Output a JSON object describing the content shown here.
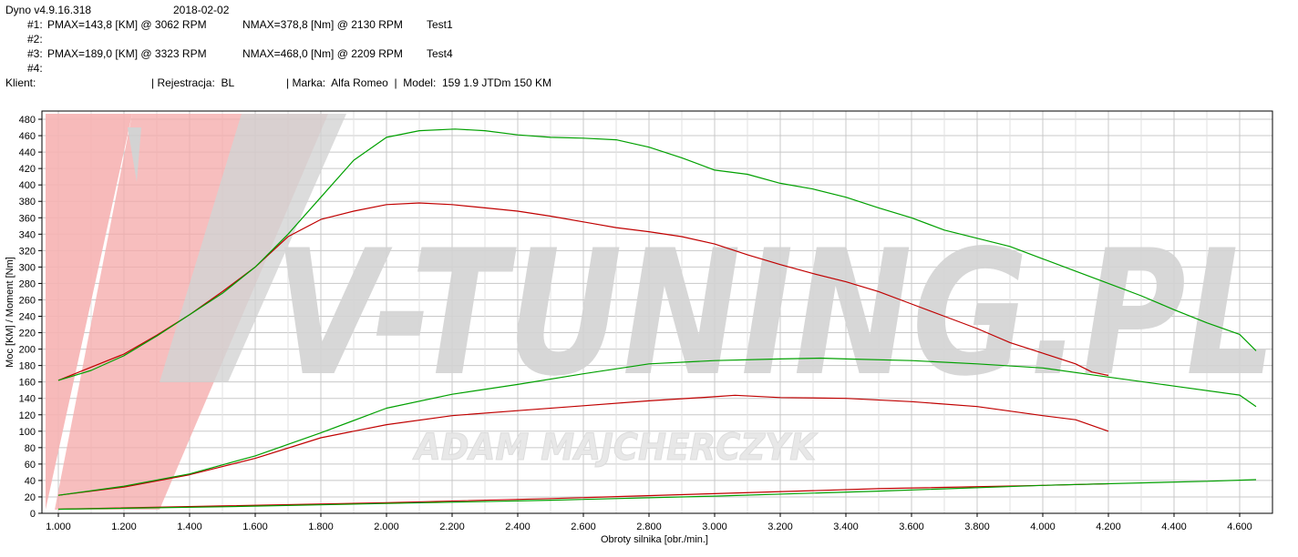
{
  "header": {
    "app_version": "Dyno v4.9.16.318",
    "date": "2018-02-02",
    "runs": [
      {
        "id": "#1:",
        "pmax": "PMAX=143,8 [KM] @ 3062 RPM",
        "nmax": "NMAX=378,8 [Nm] @ 2130 RPM",
        "name": "Test1"
      },
      {
        "id": "#2:",
        "pmax": "",
        "nmax": "",
        "name": ""
      },
      {
        "id": "#3:",
        "pmax": "PMAX=189,0 [KM] @ 3323 RPM",
        "nmax": "NMAX=468,0 [Nm] @ 2209 RPM",
        "name": "Test4"
      },
      {
        "id": "#4:",
        "pmax": "",
        "nmax": "",
        "name": ""
      }
    ],
    "client_label": "Klient:",
    "registration": "| Rejestracja:  BL",
    "vehicle": "| Marka:  Alfa Romeo  |  Model:  159 1.9 JTDm 150 KM"
  },
  "watermark": {
    "brand": "V-TUNING.PL",
    "name": "ADAM MAJCHERCZYK"
  },
  "colors": {
    "run1": "#c00000",
    "run3": "#00a000",
    "brand_accent": "#f07070"
  },
  "chart_data": {
    "type": "line",
    "xlabel": "Obroty silnika [obr./min.]",
    "ylabel": "Moc [KM] / Moment [Nm]",
    "xlim": [
      950,
      4700
    ],
    "ylim": [
      0,
      490
    ],
    "x_ticks": [
      1000,
      1200,
      1400,
      1600,
      1800,
      2000,
      2200,
      2400,
      2600,
      2800,
      3000,
      3200,
      3400,
      3600,
      3800,
      4000,
      4200,
      4400,
      4600
    ],
    "x_tick_labels": [
      "1.000",
      "1.200",
      "1.400",
      "1.600",
      "1.800",
      "2.000",
      "2.200",
      "2.400",
      "2.600",
      "2.800",
      "3.000",
      "3.200",
      "3.400",
      "3.600",
      "3.800",
      "4.000",
      "4.200",
      "4.400",
      "4.600"
    ],
    "y_ticks": [
      0,
      20,
      40,
      60,
      80,
      100,
      120,
      140,
      160,
      180,
      200,
      220,
      240,
      260,
      280,
      300,
      320,
      340,
      360,
      380,
      400,
      420,
      440,
      460,
      480
    ],
    "grid": true,
    "series": [
      {
        "run": "#1",
        "quantity": "torque",
        "color": "#c00000",
        "x": [
          1000,
          1100,
          1200,
          1300,
          1400,
          1500,
          1600,
          1700,
          1800,
          1900,
          2000,
          2100,
          2200,
          2300,
          2400,
          2500,
          2600,
          2700,
          2800,
          2900,
          3000,
          3100,
          3200,
          3300,
          3400,
          3500,
          3600,
          3700,
          3800,
          3900,
          4000,
          4100,
          4150,
          4200
        ],
        "y": [
          162,
          178,
          194,
          217,
          242,
          270,
          300,
          337,
          358,
          368,
          376,
          378,
          376,
          372,
          368,
          362,
          355,
          348,
          343,
          337,
          328,
          315,
          303,
          292,
          282,
          270,
          255,
          240,
          225,
          208,
          195,
          182,
          172,
          168
        ]
      },
      {
        "run": "#1",
        "quantity": "power",
        "color": "#c00000",
        "x": [
          1000,
          1200,
          1400,
          1600,
          1800,
          2000,
          2200,
          2400,
          2600,
          2800,
          3000,
          3062,
          3200,
          3400,
          3600,
          3800,
          4000,
          4100,
          4200
        ],
        "y": [
          22,
          32,
          47,
          67,
          92,
          108,
          119,
          125,
          131,
          137,
          142,
          143.8,
          141,
          140,
          136,
          130,
          119,
          114,
          100
        ]
      },
      {
        "run": "#3",
        "quantity": "torque",
        "color": "#00a000",
        "x": [
          1000,
          1100,
          1200,
          1300,
          1400,
          1500,
          1600,
          1700,
          1800,
          1900,
          2000,
          2100,
          2209,
          2300,
          2400,
          2500,
          2600,
          2700,
          2800,
          2900,
          3000,
          3100,
          3200,
          3300,
          3400,
          3500,
          3600,
          3700,
          3800,
          3900,
          4000,
          4100,
          4200,
          4300,
          4400,
          4500,
          4600,
          4650
        ],
        "y": [
          162,
          174,
          192,
          216,
          242,
          268,
          300,
          340,
          385,
          430,
          458,
          466,
          468,
          466,
          461,
          458,
          457,
          455,
          446,
          433,
          418,
          413,
          402,
          395,
          385,
          372,
          360,
          345,
          335,
          325,
          310,
          295,
          280,
          265,
          248,
          232,
          218,
          198
        ]
      },
      {
        "run": "#3",
        "quantity": "power",
        "color": "#00a000",
        "x": [
          1000,
          1200,
          1400,
          1600,
          1800,
          2000,
          2200,
          2400,
          2600,
          2800,
          3000,
          3200,
          3323,
          3400,
          3600,
          3800,
          4000,
          4200,
          4400,
          4600,
          4650
        ],
        "y": [
          22,
          33,
          48,
          70,
          98,
          128,
          145,
          157,
          170,
          182,
          186,
          188,
          189,
          188,
          186,
          182,
          177,
          166,
          155,
          144,
          130
        ]
      },
      {
        "run": "#1",
        "quantity": "loss",
        "color": "#c00000",
        "x": [
          1000,
          1500,
          2000,
          2500,
          3000,
          3500,
          4000,
          4200
        ],
        "y": [
          5,
          9,
          13,
          18,
          24,
          30,
          34,
          36
        ]
      },
      {
        "run": "#3",
        "quantity": "loss",
        "color": "#00a000",
        "x": [
          1000,
          1500,
          2000,
          2500,
          3000,
          3500,
          4000,
          4500,
          4650
        ],
        "y": [
          5,
          8,
          12,
          16,
          21,
          27,
          34,
          39,
          41
        ]
      }
    ]
  }
}
